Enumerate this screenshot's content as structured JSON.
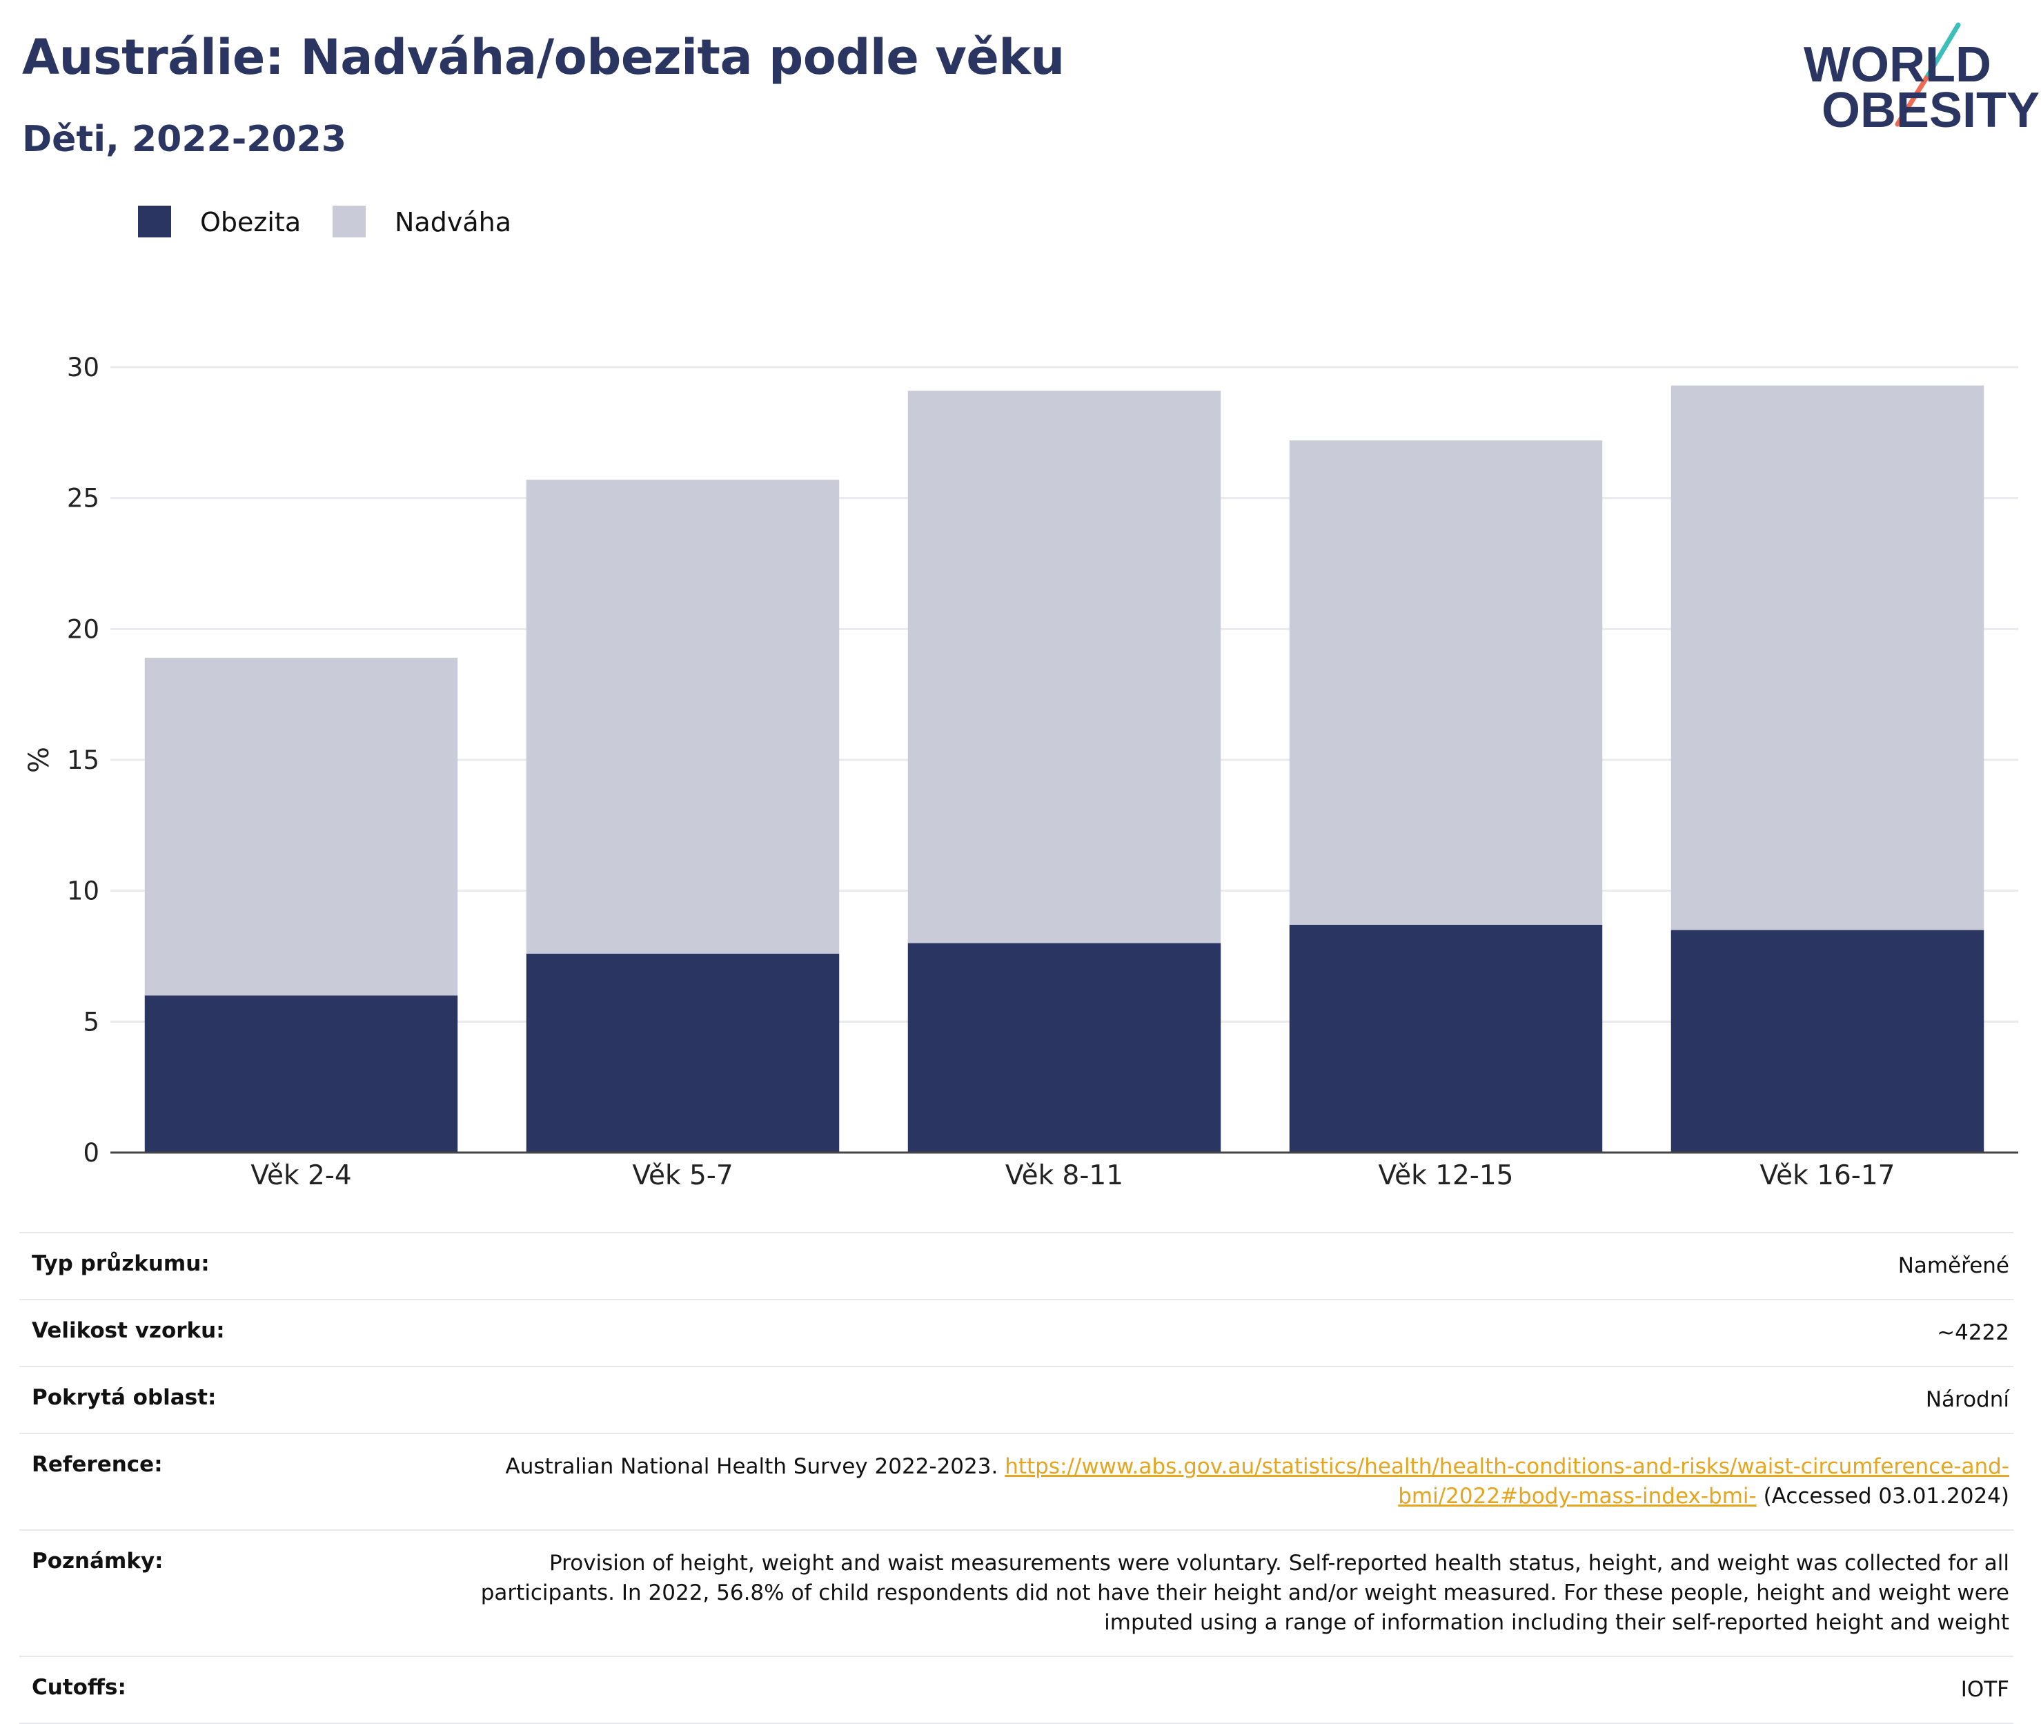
{
  "header": {
    "title": "Austrálie: Nadváha/obezita podle věku",
    "subtitle": "Děti, 2022-2023",
    "logo_line1": "WORLD",
    "logo_line2": "OBESITY"
  },
  "colors": {
    "obesity": "#2a3561",
    "overweight": "#c9ccd8",
    "title": "#2a3561",
    "link": "#e5a51e",
    "logo_teal": "#3bbfb8",
    "logo_coral": "#ee6a55"
  },
  "legend": [
    {
      "label": "Obezita",
      "color": "#2a3561"
    },
    {
      "label": "Nadváha",
      "color": "#c9ccd8"
    }
  ],
  "chart_data": {
    "type": "bar",
    "stacked": true,
    "categories": [
      "Věk 2-4",
      "Věk 5-7",
      "Věk 8-11",
      "Věk 12-15",
      "Věk 16-17"
    ],
    "series": [
      {
        "name": "Obezita",
        "values": [
          6.0,
          7.6,
          8.0,
          8.7,
          8.5
        ]
      },
      {
        "name": "Nadváha",
        "values": [
          12.9,
          18.1,
          21.1,
          18.5,
          20.8
        ]
      }
    ],
    "ylabel": "%",
    "ylim": [
      0,
      30
    ],
    "yticks": [
      0,
      5,
      10,
      15,
      20,
      25,
      30
    ],
    "grid": true,
    "legend_position": "top-left"
  },
  "info": [
    {
      "label": "Typ průzkumu:",
      "value": "Naměřené"
    },
    {
      "label": "Velikost vzorku:",
      "value": "~4222"
    },
    {
      "label": "Pokrytá oblast:",
      "value": "Národní"
    },
    {
      "label": "Reference:",
      "value_before": "Australian National Health Survey 2022-2023.",
      "link": "https://www.abs.gov.au/statistics/health/health-conditions-and-risks/waist-circumference-and-bmi/2022#body-mass-index-bmi-",
      "value_after": "(Accessed 03.01.2024)"
    },
    {
      "label": "Poznámky:",
      "value": "Provision of height, weight and waist measurements were voluntary. Self-reported health status, height, and weight was collected for all participants. In 2022, 56.8% of child respondents did not have their height and/or weight measured. For these people, height and weight were imputed using a range of information including their self-reported height and weight"
    },
    {
      "label": "Cutoffs:",
      "value": "IOTF"
    }
  ]
}
